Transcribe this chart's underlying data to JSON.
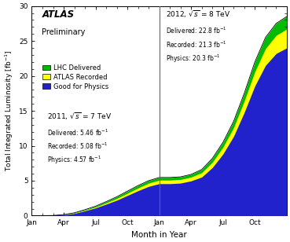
{
  "xlabel": "Month in Year",
  "ylabel": "Total Integrated Luminosity [fb$^{-1}$]",
  "ylim": [
    0,
    30
  ],
  "yticks": [
    0,
    5,
    10,
    15,
    20,
    25,
    30
  ],
  "colors": {
    "lhc": "#00bb00",
    "atlas": "#ffff00",
    "physics": "#2222cc",
    "vline": "#666666"
  },
  "legend_labels": [
    "LHC Delivered",
    "ATLAS Recorded",
    "Good for Physics"
  ],
  "annotation_2011": {
    "delivered": "5.46",
    "recorded": "5.08",
    "physics": "4.57"
  },
  "annotation_2012": {
    "delivered": "22.8",
    "recorded": "21.3",
    "physics": "20.3"
  },
  "xtick_labels": [
    "Jan",
    "Apr",
    "Jul",
    "Oct",
    "Jan",
    "Apr",
    "Jul",
    "Oct",
    ""
  ],
  "xtick_positions": [
    0,
    3,
    6,
    9,
    12,
    15,
    18,
    21,
    24
  ],
  "vline_x": 12,
  "lhc_x": [
    0,
    1,
    2,
    3,
    4,
    5,
    6,
    7,
    8,
    9,
    10,
    11,
    12,
    13,
    14,
    15,
    16,
    17,
    18,
    19,
    20,
    21,
    22,
    23,
    24
  ],
  "lhc_y": [
    0,
    0,
    0.02,
    0.15,
    0.4,
    0.85,
    1.35,
    2.0,
    2.7,
    3.5,
    4.3,
    5.0,
    5.46,
    5.46,
    5.55,
    5.9,
    6.6,
    8.2,
    10.5,
    13.5,
    17.5,
    22.0,
    25.5,
    27.5,
    28.5
  ],
  "atlas_y": [
    0,
    0,
    0.015,
    0.12,
    0.35,
    0.76,
    1.22,
    1.82,
    2.45,
    3.2,
    3.95,
    4.65,
    5.08,
    5.08,
    5.17,
    5.52,
    6.15,
    7.65,
    9.8,
    12.6,
    16.4,
    20.6,
    23.9,
    25.8,
    26.7
  ],
  "phys_y": [
    0,
    0,
    0.01,
    0.1,
    0.3,
    0.68,
    1.1,
    1.64,
    2.2,
    2.88,
    3.56,
    4.18,
    4.57,
    4.57,
    4.65,
    4.97,
    5.52,
    6.88,
    8.82,
    11.35,
    14.76,
    18.56,
    21.5,
    23.2,
    24.0
  ],
  "background_color": "#ffffff"
}
